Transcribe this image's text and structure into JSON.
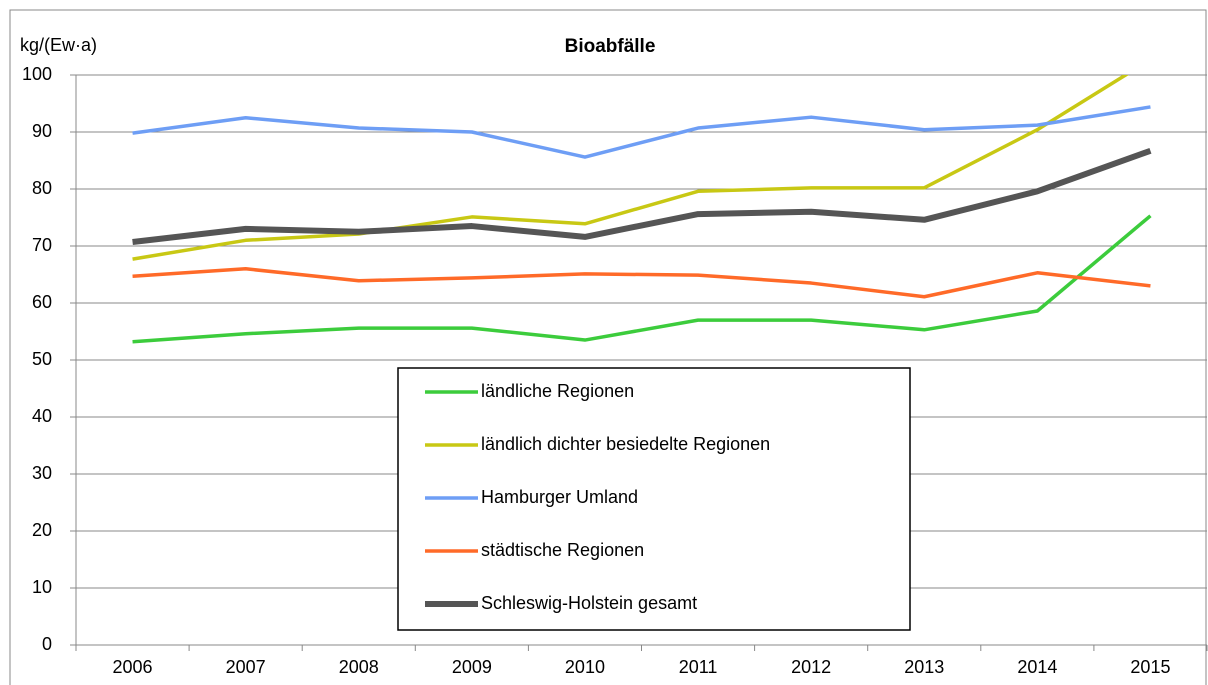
{
  "chart_data": {
    "type": "line",
    "title": "Bioabfälle",
    "y_label": "kg/(Ew·a)",
    "categories": [
      "2006",
      "2007",
      "2008",
      "2009",
      "2010",
      "2011",
      "2012",
      "2013",
      "2014",
      "2015"
    ],
    "ylim": [
      0,
      100
    ],
    "yticks": [
      0,
      10,
      20,
      30,
      40,
      50,
      60,
      70,
      80,
      90,
      100
    ],
    "grid": true,
    "series": [
      {
        "name": "ländliche Regionen",
        "color": "#3ccc3c",
        "values": [
          53.2,
          54.6,
          55.6,
          55.6,
          53.5,
          57,
          57,
          55.3,
          58.6,
          75.3
        ]
      },
      {
        "name": "ländlich dichter besiedelte Regionen",
        "color": "#c8c814",
        "values": [
          67.7,
          71,
          72.1,
          75.1,
          73.9,
          79.6,
          80.2,
          80.2,
          90.4,
          102.7
        ]
      },
      {
        "name": "Hamburger Umland",
        "color": "#6e9ef5",
        "values": [
          89.8,
          92.5,
          90.7,
          90,
          85.6,
          90.7,
          92.6,
          90.4,
          91.2,
          94.4
        ]
      },
      {
        "name": "städtische Regionen",
        "color": "#ff6a28",
        "values": [
          64.7,
          66,
          63.9,
          64.4,
          65.1,
          64.9,
          63.5,
          61.1,
          65.3,
          63
        ]
      },
      {
        "name": "Schleswig-Holstein gesamt",
        "color": "#555555",
        "values": [
          70.7,
          73,
          72.5,
          73.5,
          71.6,
          75.6,
          76,
          74.6,
          79.6,
          86.7
        ]
      }
    ]
  }
}
